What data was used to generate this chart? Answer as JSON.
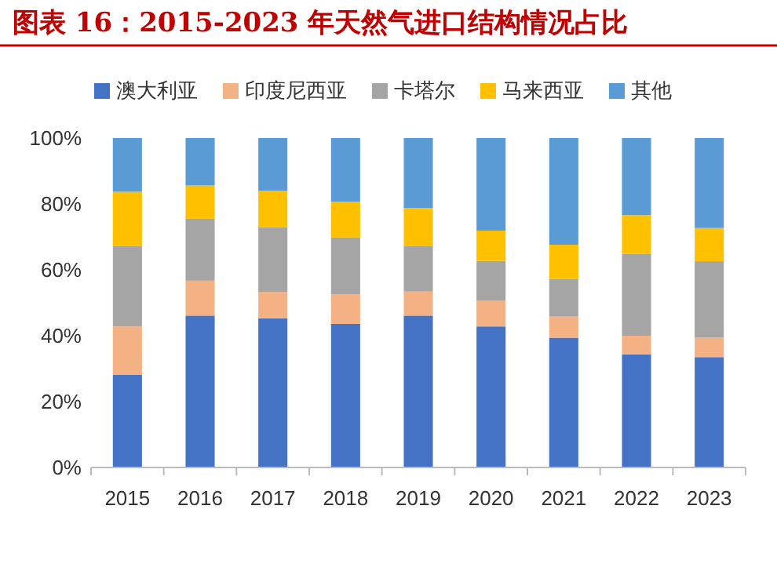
{
  "chart_data": {
    "type": "bar",
    "title": "图表 16：2015-2023 年天然气进口结构情况占比",
    "stacked": true,
    "legend": "top",
    "grid": false,
    "categories": [
      "2015",
      "2016",
      "2017",
      "2018",
      "2019",
      "2020",
      "2021",
      "2022",
      "2023"
    ],
    "ylim": [
      0,
      100
    ],
    "yticks": [
      {
        "value": 0,
        "label": "0%"
      },
      {
        "value": 20,
        "label": "20%"
      },
      {
        "value": 40,
        "label": "40%"
      },
      {
        "value": 60,
        "label": "60%"
      },
      {
        "value": 80,
        "label": "80%"
      },
      {
        "value": 100,
        "label": "100%"
      }
    ],
    "series": [
      {
        "name": "澳大利亚",
        "color": "#4472c4",
        "values": [
          28.1,
          46.1,
          45.3,
          43.6,
          46.1,
          42.8,
          39.4,
          34.3,
          33.5
        ]
      },
      {
        "name": "印度尼西亚",
        "color": "#f4b183",
        "values": [
          14.7,
          10.6,
          8.0,
          9.0,
          7.3,
          7.9,
          6.4,
          5.7,
          5.9
        ]
      },
      {
        "name": "卡塔尔",
        "color": "#a5a5a5",
        "values": [
          24.5,
          18.8,
          19.6,
          17.2,
          13.9,
          12.0,
          11.4,
          24.9,
          23.2
        ]
      },
      {
        "name": "马来西亚",
        "color": "#ffc000",
        "values": [
          16.4,
          10.1,
          11.1,
          10.9,
          11.5,
          9.2,
          10.4,
          11.7,
          10.1
        ]
      },
      {
        "name": "其他",
        "color": "#5b9bd5",
        "values": [
          16.3,
          14.4,
          16.0,
          19.3,
          21.2,
          28.1,
          32.4,
          23.4,
          27.3
        ]
      }
    ]
  }
}
